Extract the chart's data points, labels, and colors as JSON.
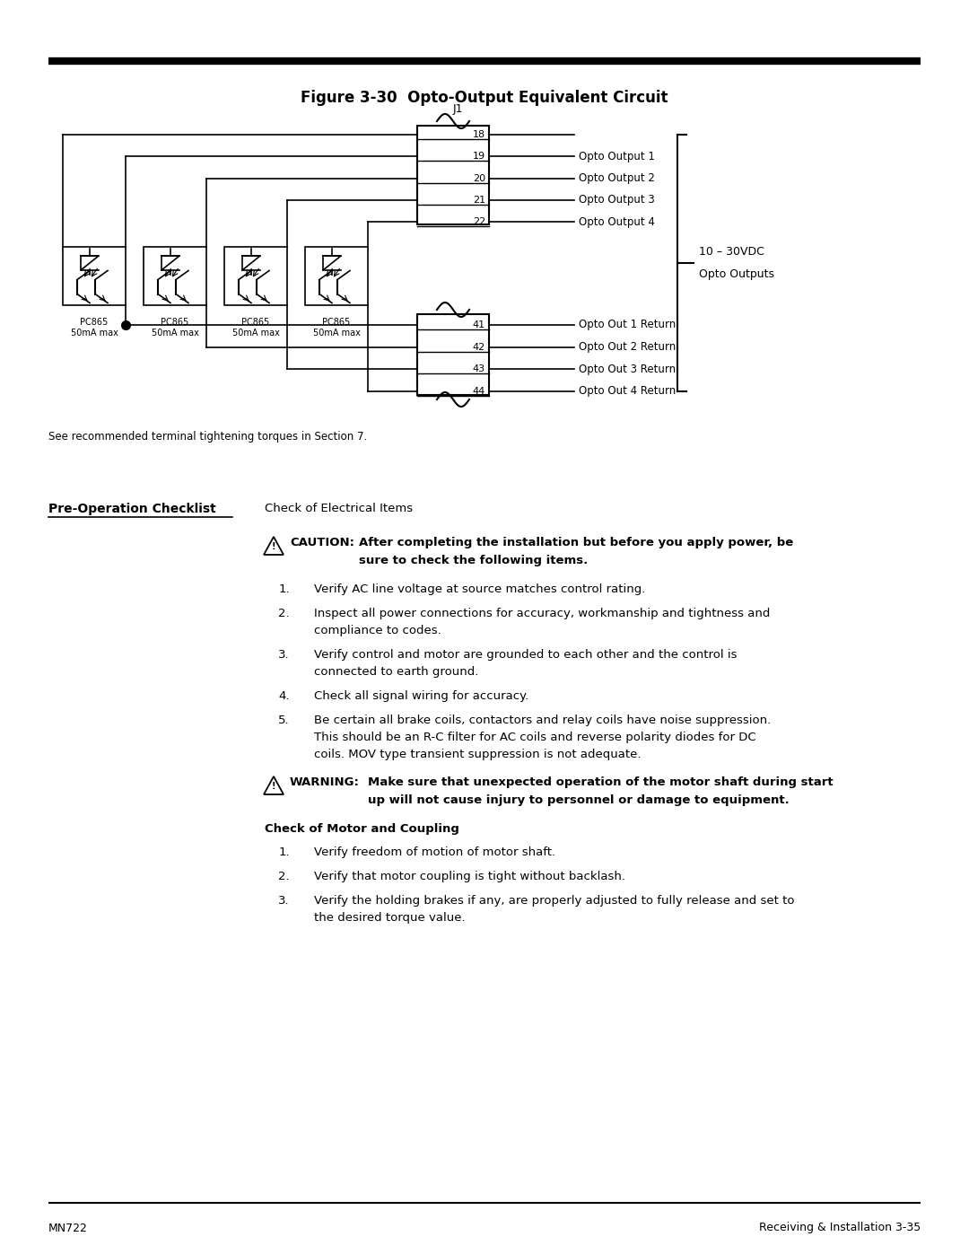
{
  "title": "Figure 3-30  Opto-Output Equivalent Circuit",
  "j1_label": "J1",
  "top_pins": [
    "18",
    "19",
    "20",
    "21",
    "22"
  ],
  "top_labels": [
    "",
    "Opto Output 1",
    "Opto Output 2",
    "Opto Output 3",
    "Opto Output 4"
  ],
  "bottom_pins": [
    "41",
    "42",
    "43",
    "44"
  ],
  "bottom_labels": [
    "Opto Out 1 Return",
    "Opto Out 2 Return",
    "Opto Out 3 Return",
    "Opto Out 4 Return"
  ],
  "opto_labels": [
    "PC865\n50mA max",
    "PC865\n50mA max",
    "PC865\n50mA max",
    "PC865\n50mA max"
  ],
  "right_label_top": "10 – 30VDC",
  "right_label_bottom": "Opto Outputs",
  "see_note": "See recommended terminal tightening torques in Section 7.",
  "checklist_title": "Pre-Operation Checklist",
  "checklist_subtitle": "Check of Electrical Items",
  "footer_left": "MN722",
  "footer_right": "Receiving & Installation 3-35",
  "bg_color": "#ffffff",
  "line_color": "#000000"
}
